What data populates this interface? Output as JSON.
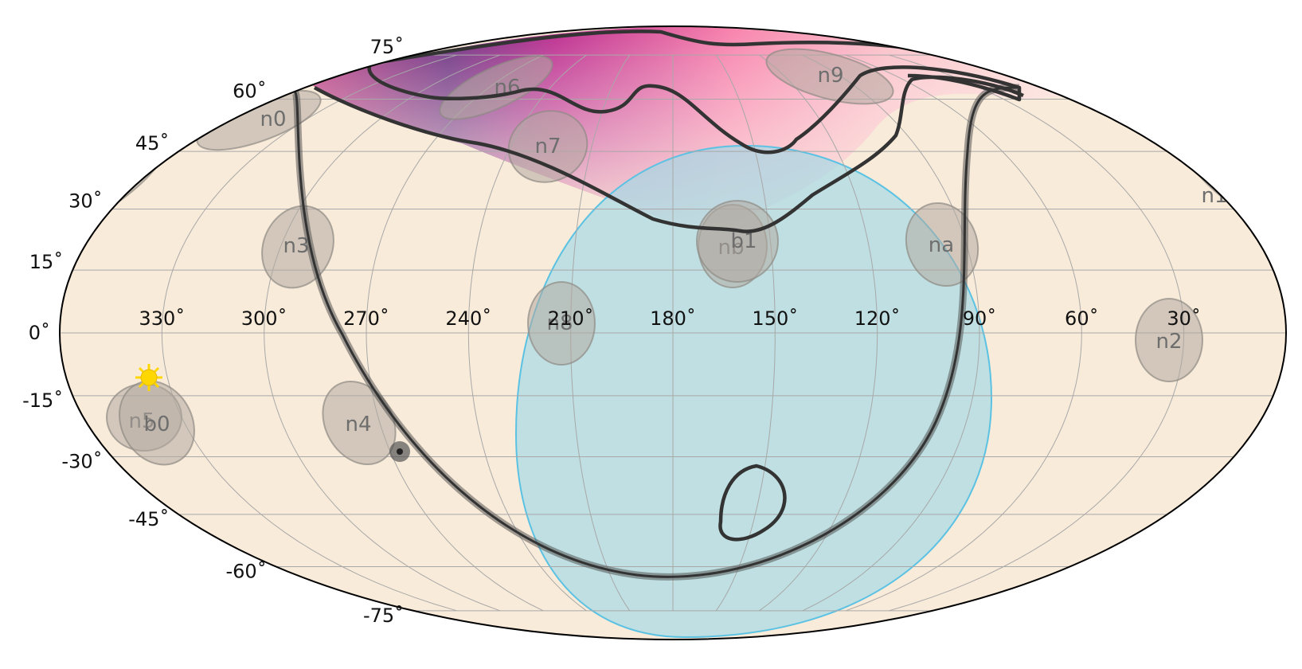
{
  "map": {
    "projection": "mollweide",
    "background_color": "#f9ebd9",
    "graticule_color": "#a8a8a8",
    "lon_labels": [
      "330˚",
      "300˚",
      "270˚",
      "240˚",
      "210˚",
      "180˚",
      "150˚",
      "120˚",
      "90˚",
      "60˚",
      "30˚"
    ],
    "lat_labels": [
      "75˚",
      "60˚",
      "45˚",
      "30˚",
      "15˚",
      "0˚",
      "-15˚",
      "-30˚",
      "-45˚",
      "-60˚",
      "-75˚"
    ]
  },
  "detectors": {
    "color": "#b3aaa0",
    "items": [
      {
        "name": "n0"
      },
      {
        "name": "n1"
      },
      {
        "name": "n2"
      },
      {
        "name": "n3"
      },
      {
        "name": "n4"
      },
      {
        "name": "n5"
      },
      {
        "name": "n6"
      },
      {
        "name": "n7"
      },
      {
        "name": "n8"
      },
      {
        "name": "n9"
      },
      {
        "name": "na"
      },
      {
        "name": "nb"
      },
      {
        "name": "b0"
      },
      {
        "name": "b1"
      }
    ]
  },
  "earth_occultation": {
    "color": "#9fd9e6",
    "edge_color": "#5bc2e3"
  },
  "localization": {
    "colormap": "RdPu",
    "contour_color": "#333333"
  },
  "galactic_plane": {
    "color": "#444444"
  },
  "sun": {
    "icon": "sun-icon",
    "color": "#ffd700"
  }
}
